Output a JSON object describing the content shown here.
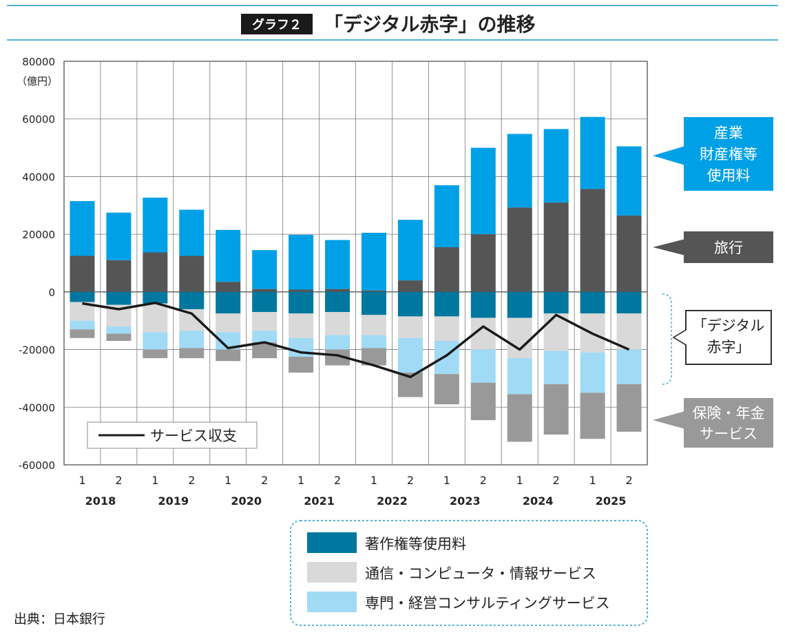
{
  "header": {
    "badge": "グラフ２",
    "title": "「デジタル赤字」の推移"
  },
  "unit_label": "（億円）",
  "source": "出典：日本銀行",
  "colors": {
    "ip_fees": "#00a0e6",
    "travel": "#555555",
    "copyright": "#00779f",
    "telecom": "#d9d9d9",
    "consulting": "#a0daf5",
    "insurance": "#999999",
    "line": "#1a1a1a",
    "accent_rule": "#4fb3d9"
  },
  "callouts": {
    "ip": [
      "産業",
      "財産権等",
      "使用料"
    ],
    "travel": [
      "旅行"
    ],
    "digital": [
      "「デジタル",
      "赤字」"
    ],
    "insurance": [
      "保険・年金",
      "サービス"
    ]
  },
  "legends": {
    "line": "サービス収支",
    "boxed": [
      "著作権等使用料",
      "通信・コンピュータ・情報サービス",
      "専門・経営コンサルティングサービス"
    ]
  },
  "chart_data": {
    "type": "bar",
    "stacked": true,
    "categories": [
      "1",
      "2",
      "1",
      "2",
      "1",
      "2",
      "1",
      "2",
      "1",
      "2",
      "1",
      "2",
      "1",
      "2",
      "1",
      "2"
    ],
    "years": [
      "2018",
      "2019",
      "2020",
      "2021",
      "2022",
      "2023",
      "2024",
      "2025"
    ],
    "ylim": [
      -60000,
      80000
    ],
    "yticks": [
      80000,
      60000,
      40000,
      20000,
      0,
      -20000,
      -40000,
      -60000
    ],
    "grid": true,
    "series": [
      {
        "name": "産業財産権等使用料",
        "values": [
          19000,
          16500,
          19000,
          16000,
          18000,
          13500,
          19000,
          17000,
          20000,
          21000,
          21500,
          30000,
          25500,
          25500,
          25000,
          24000
        ]
      },
      {
        "name": "旅行",
        "values": [
          12500,
          11000,
          13700,
          12500,
          3500,
          1000,
          800,
          1000,
          500,
          4000,
          15500,
          20000,
          29300,
          31000,
          35700,
          26500
        ]
      },
      {
        "name": "著作権等使用料",
        "values": [
          -3500,
          -4500,
          -4000,
          -6000,
          -7500,
          -7000,
          -7500,
          -7000,
          -8000,
          -8500,
          -8500,
          -9000,
          -9000,
          -7500,
          -7500,
          -7500
        ]
      },
      {
        "name": "通信・コンピュータ・情報サービス",
        "values": [
          -6500,
          -7500,
          -10000,
          -7500,
          -6500,
          -6500,
          -8500,
          -8000,
          -7000,
          -7500,
          -8500,
          -11000,
          -14000,
          -13000,
          -13500,
          -12500
        ]
      },
      {
        "name": "専門・経営コンサルティングサービス",
        "values": [
          -3000,
          -2500,
          -6000,
          -6000,
          -6000,
          -4000,
          -6500,
          -5000,
          -4500,
          -12000,
          -11500,
          -11500,
          -12500,
          -11500,
          -14000,
          -12000
        ]
      },
      {
        "name": "保険・年金サービス",
        "values": [
          -3000,
          -2500,
          -3000,
          -3500,
          -4000,
          -5500,
          -5500,
          -5500,
          -6000,
          -8500,
          -10500,
          -13000,
          -16500,
          -17500,
          -16000,
          -16500
        ]
      }
    ],
    "line": {
      "name": "サービス収支",
      "values": [
        -4000,
        -6000,
        -3800,
        -7500,
        -19500,
        -17500,
        -21000,
        -22000,
        -25500,
        -29500,
        -22000,
        -12000,
        -20000,
        -8000,
        -14500,
        -20000
      ]
    }
  }
}
